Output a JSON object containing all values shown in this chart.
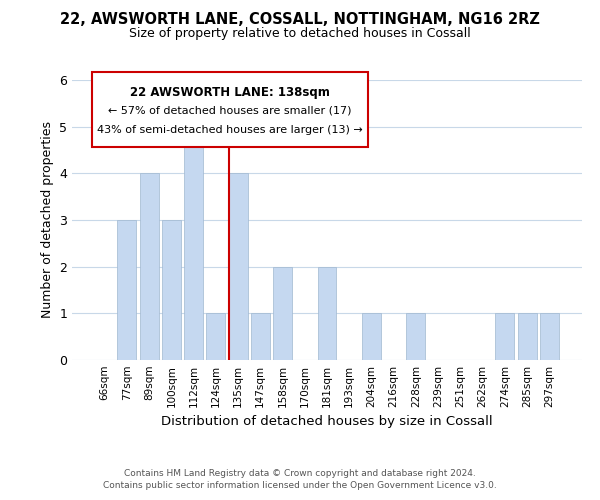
{
  "title_line1": "22, AWSWORTH LANE, COSSALL, NOTTINGHAM, NG16 2RZ",
  "title_line2": "Size of property relative to detached houses in Cossall",
  "xlabel": "Distribution of detached houses by size in Cossall",
  "ylabel": "Number of detached properties",
  "categories": [
    "66sqm",
    "77sqm",
    "89sqm",
    "100sqm",
    "112sqm",
    "124sqm",
    "135sqm",
    "147sqm",
    "158sqm",
    "170sqm",
    "181sqm",
    "193sqm",
    "204sqm",
    "216sqm",
    "228sqm",
    "239sqm",
    "251sqm",
    "262sqm",
    "274sqm",
    "285sqm",
    "297sqm"
  ],
  "values": [
    0,
    3,
    4,
    3,
    5,
    1,
    4,
    1,
    2,
    0,
    2,
    0,
    1,
    0,
    1,
    0,
    0,
    0,
    1,
    1,
    1
  ],
  "highlight_index": 6,
  "bar_color": "#c5d8f0",
  "highlight_line_color": "#cc0000",
  "ylim": [
    0,
    6
  ],
  "yticks": [
    0,
    1,
    2,
    3,
    4,
    5,
    6
  ],
  "annotation_title": "22 AWSWORTH LANE: 138sqm",
  "annotation_line2": "← 57% of detached houses are smaller (17)",
  "annotation_line3": "43% of semi-detached houses are larger (13) →",
  "footer_line1": "Contains HM Land Registry data © Crown copyright and database right 2024.",
  "footer_line2": "Contains public sector information licensed under the Open Government Licence v3.0.",
  "background_color": "#ffffff",
  "grid_color": "#c8d8e8"
}
